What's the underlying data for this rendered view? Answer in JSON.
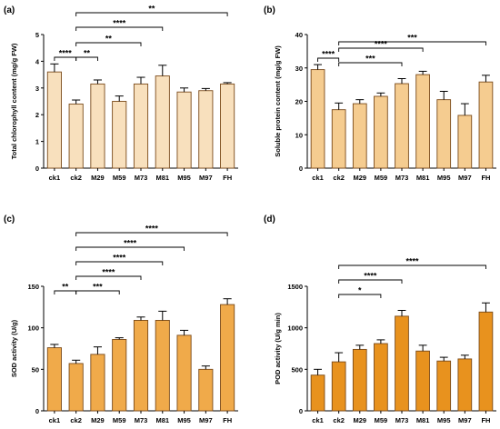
{
  "chart_data": [
    {
      "type": "bar",
      "panel": "(a)",
      "ylabel": "Total chlorophyll content (mg/g FW)",
      "ylim": [
        0,
        5
      ],
      "yticks": [
        0,
        1,
        2,
        3,
        4,
        5
      ],
      "categories": [
        "ck1",
        "ck2",
        "M29",
        "M59",
        "M73",
        "M81",
        "M95",
        "M97",
        "FH"
      ],
      "values": [
        3.6,
        2.4,
        3.15,
        2.5,
        3.15,
        3.45,
        2.85,
        2.9,
        3.15
      ],
      "errors": [
        0.3,
        0.15,
        0.15,
        0.2,
        0.25,
        0.4,
        0.15,
        0.08,
        0.05
      ],
      "bar_color": "#f8e0bd",
      "significance": [
        {
          "from": "ck1",
          "to": "ck2",
          "label": "****"
        },
        {
          "from": "ck2",
          "to": "M29",
          "label": "**"
        },
        {
          "from": "ck2",
          "to": "M73",
          "label": "**"
        },
        {
          "from": "ck2",
          "to": "M81",
          "label": "****"
        },
        {
          "from": "ck2",
          "to": "FH",
          "label": "**"
        }
      ]
    },
    {
      "type": "bar",
      "panel": "(b)",
      "ylabel": "Soluble protein content (mg/g FW)",
      "ylim": [
        0,
        40
      ],
      "yticks": [
        0,
        10,
        20,
        30,
        40
      ],
      "categories": [
        "ck1",
        "ck2",
        "M29",
        "M59",
        "M73",
        "M81",
        "M95",
        "M97",
        "FH"
      ],
      "values": [
        29.5,
        17.5,
        19.3,
        21.5,
        25.3,
        28.0,
        20.5,
        15.8,
        25.8
      ],
      "errors": [
        1.5,
        2.0,
        1.2,
        1.0,
        1.5,
        1.0,
        2.5,
        3.5,
        2.0
      ],
      "bar_color": "#f5cc90",
      "significance": [
        {
          "from": "ck1",
          "to": "ck2",
          "label": "****"
        },
        {
          "from": "ck2",
          "to": "M73",
          "label": "***"
        },
        {
          "from": "ck2",
          "to": "M81",
          "label": "****"
        },
        {
          "from": "ck2",
          "to": "FH",
          "label": "***"
        }
      ]
    },
    {
      "type": "bar",
      "panel": "(c)",
      "ylabel": "SOD activity (U/g)",
      "ylim": [
        0,
        150
      ],
      "yticks": [
        0,
        50,
        100,
        150
      ],
      "categories": [
        "ck1",
        "ck2",
        "M29",
        "M59",
        "M73",
        "M81",
        "M95",
        "M97",
        "FH"
      ],
      "values": [
        76,
        57,
        68,
        86,
        109,
        109,
        91,
        50,
        128
      ],
      "errors": [
        4,
        4,
        9,
        2,
        4,
        11,
        6,
        4,
        7
      ],
      "bar_color": "#f0aa4a",
      "significance": [
        {
          "from": "ck1",
          "to": "ck2",
          "label": "**"
        },
        {
          "from": "ck2",
          "to": "M59",
          "label": "***"
        },
        {
          "from": "ck2",
          "to": "M73",
          "label": "****"
        },
        {
          "from": "ck2",
          "to": "M81",
          "label": "****"
        },
        {
          "from": "ck2",
          "to": "M95",
          "label": "****"
        },
        {
          "from": "ck2",
          "to": "FH",
          "label": "****"
        }
      ]
    },
    {
      "type": "bar",
      "panel": "(d)",
      "ylabel": "POD activity (U/g min)",
      "ylim": [
        0,
        1500
      ],
      "yticks": [
        0,
        500,
        1000,
        1500
      ],
      "categories": [
        "ck1",
        "ck2",
        "M29",
        "M59",
        "M73",
        "M81",
        "M95",
        "M97",
        "FH"
      ],
      "values": [
        430,
        590,
        740,
        810,
        1140,
        720,
        600,
        625,
        1190
      ],
      "errors": [
        70,
        110,
        50,
        45,
        70,
        70,
        45,
        45,
        110
      ],
      "bar_color": "#e8921e",
      "significance": [
        {
          "from": "ck2",
          "to": "M59",
          "label": "*"
        },
        {
          "from": "ck2",
          "to": "M73",
          "label": "****"
        },
        {
          "from": "ck2",
          "to": "FH",
          "label": "****"
        }
      ]
    }
  ]
}
